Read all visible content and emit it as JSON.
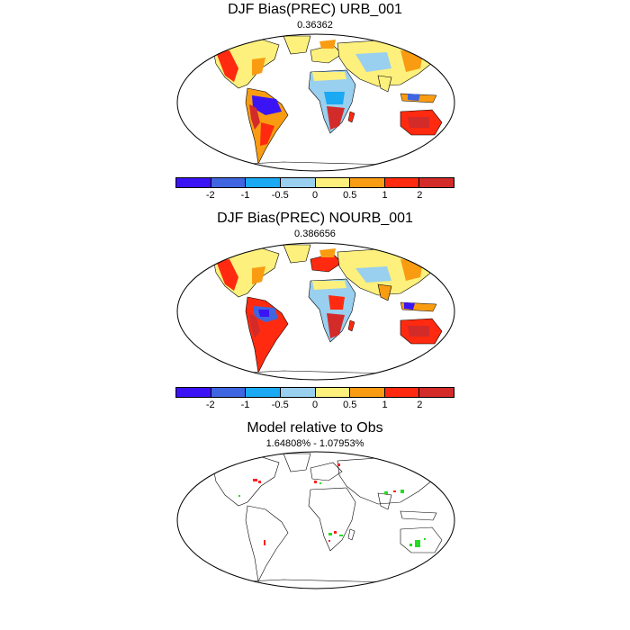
{
  "panels": [
    {
      "title": "DJF Bias(PREC) URB_001",
      "subtitle": "0.36362",
      "has_colorbar": true
    },
    {
      "title": "DJF Bias(PREC) NOURB_001",
      "subtitle": "0.386656",
      "has_colorbar": true
    },
    {
      "title": "Model relative to Obs",
      "subtitle": "1.64808% - 1.07953%",
      "has_colorbar": false
    }
  ],
  "colorbar": {
    "colors": [
      "#3b14f5",
      "#3f66e0",
      "#1aa9f2",
      "#99cfef",
      "#fdf07c",
      "#f99c12",
      "#ff2a0f",
      "#d32b2a"
    ],
    "tick_labels": [
      "-2",
      "-1",
      "-0.5",
      "0",
      "0.5",
      "1",
      "2"
    ]
  },
  "map_colors": {
    "land_outline": "#000000",
    "dry_strong": "#d32b2a",
    "dry": "#ff2a0f",
    "dry_mild": "#f99c12",
    "neutral_pos": "#fdf07c",
    "neutral_neg": "#99cfef",
    "wet_mild": "#1aa9f2",
    "wet": "#3f66e0",
    "wet_strong": "#3b14f5",
    "sig_red": "#ff2020",
    "sig_green": "#22dd22"
  }
}
